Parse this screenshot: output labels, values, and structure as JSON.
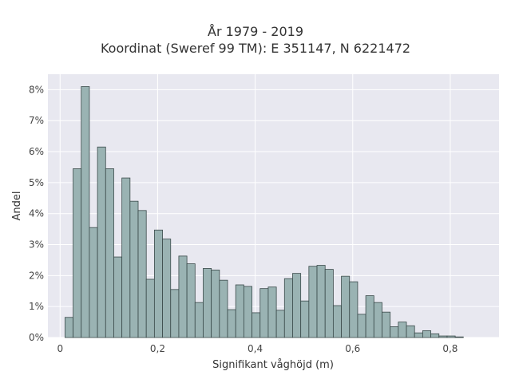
{
  "chart_data": {
    "type": "bar",
    "title": "År 1979 - 2019",
    "subtitle": "Koordinat (Sweref 99 TM): E 351147, N 6221472",
    "xlabel": "Signifikant våghöjd (m)",
    "ylabel": "Andel",
    "xlim": [
      -0.025,
      0.9
    ],
    "ylim": [
      0,
      8.5
    ],
    "xticks": [
      {
        "v": 0,
        "label": "0"
      },
      {
        "v": 0.2,
        "label": "0,2"
      },
      {
        "v": 0.4,
        "label": "0,4"
      },
      {
        "v": 0.6,
        "label": "0,6"
      },
      {
        "v": 0.8,
        "label": "0,8"
      }
    ],
    "yticks": [
      {
        "v": 0,
        "label": "0%"
      },
      {
        "v": 1,
        "label": "1%"
      },
      {
        "v": 2,
        "label": "2%"
      },
      {
        "v": 3,
        "label": "3%"
      },
      {
        "v": 4,
        "label": "4%"
      },
      {
        "v": 5,
        "label": "5%"
      },
      {
        "v": 6,
        "label": "6%"
      },
      {
        "v": 7,
        "label": "7%"
      },
      {
        "v": 8,
        "label": "8%"
      }
    ],
    "bin_start": 0.01,
    "bin_width": 0.01667,
    "values": [
      0.65,
      5.45,
      8.1,
      3.55,
      6.15,
      5.45,
      2.6,
      5.15,
      4.4,
      4.1,
      1.88,
      3.47,
      3.18,
      1.55,
      2.63,
      2.38,
      1.13,
      2.23,
      2.18,
      1.85,
      0.9,
      1.7,
      1.65,
      0.8,
      1.58,
      1.63,
      0.88,
      1.9,
      2.07,
      1.18,
      2.3,
      2.33,
      2.2,
      1.03,
      1.98,
      1.8,
      0.75,
      1.35,
      1.13,
      0.82,
      0.35,
      0.5,
      0.38,
      0.15,
      0.22,
      0.12,
      0.05,
      0.05,
      0.02
    ],
    "grid": true,
    "bar_color": "#9ab3b3",
    "bar_edge_color": "#3a4a4a",
    "plot_bg": "#e8e8f0"
  }
}
